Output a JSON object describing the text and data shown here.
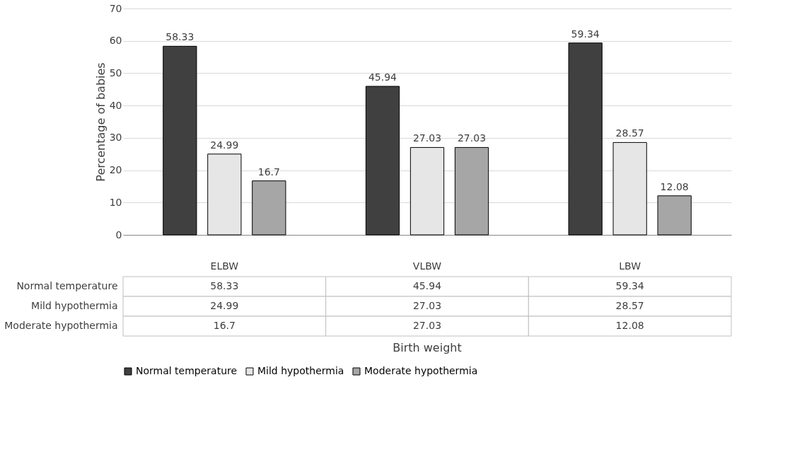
{
  "chart_data": {
    "type": "bar",
    "ylabel": "Percentage of babies",
    "categories": [
      "ELBW",
      "VLBW",
      "LBW"
    ],
    "series": [
      {
        "name": "Normal temperature",
        "color": "#404040",
        "values": [
          58.33,
          45.94,
          59.34
        ]
      },
      {
        "name": "Mild hypothermia",
        "color": "#e6e6e6",
        "values": [
          24.99,
          27.03,
          28.57
        ]
      },
      {
        "name": "Moderate hypothermia",
        "color": "#a6a6a6",
        "values": [
          16.7,
          27.03,
          12.08
        ]
      }
    ],
    "annotations": [
      "58.33",
      "24.99",
      "16.7",
      "45.94",
      "27.03",
      "27.03",
      "59.34",
      "28.57",
      "12.08",
      "Birth weight"
    ],
    "ylim": [
      0,
      70
    ],
    "yticks": [
      0,
      10,
      20,
      30,
      40,
      50,
      60,
      70
    ],
    "grid": "y",
    "legend": "bottom",
    "data_labels": true
  }
}
